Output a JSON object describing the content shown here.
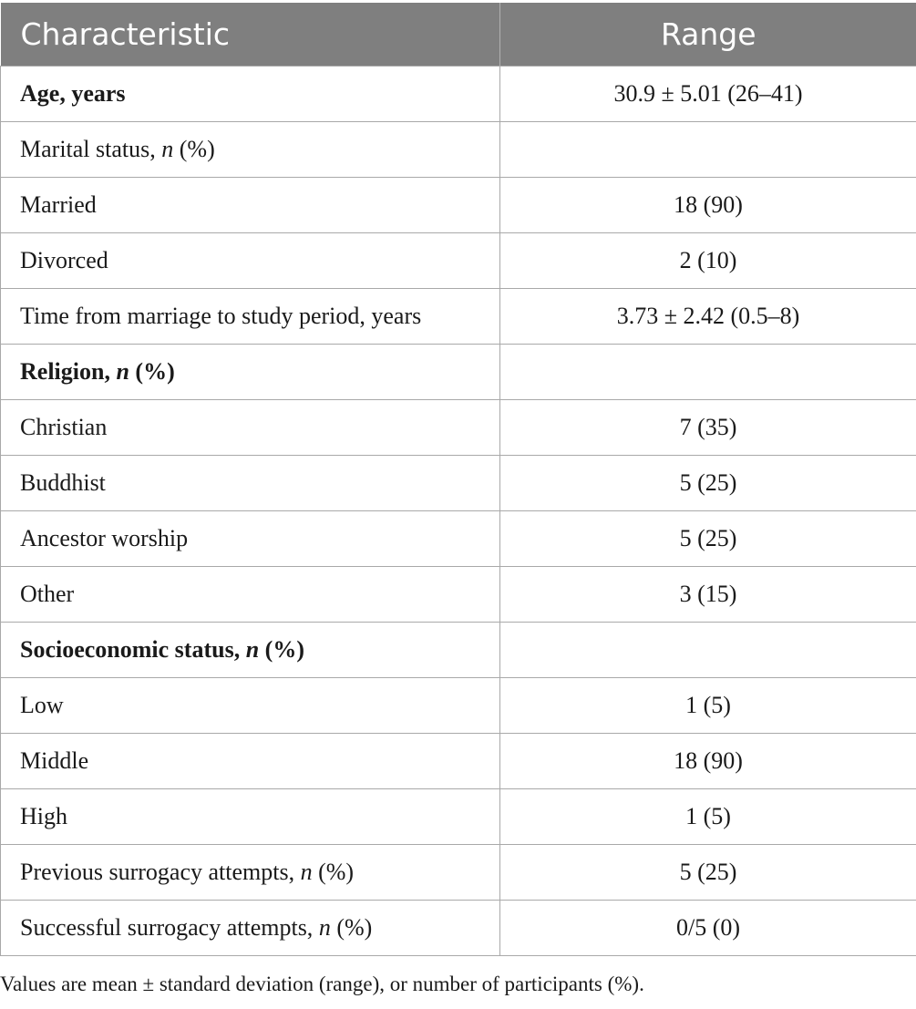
{
  "table": {
    "header": {
      "col1": "Characteristic",
      "col2": "Range"
    },
    "rows": [
      {
        "label": "Age, years",
        "italic": "",
        "suffix": "",
        "value": "30.9 ± 5.01 (26–41)",
        "bold": true
      },
      {
        "label": "Marital status, ",
        "italic": "n",
        "suffix": " (%)",
        "value": "",
        "bold": false
      },
      {
        "label": "Married",
        "italic": "",
        "suffix": "",
        "value": "18 (90)",
        "bold": false
      },
      {
        "label": "Divorced",
        "italic": "",
        "suffix": "",
        "value": "2 (10)",
        "bold": false
      },
      {
        "label": "Time from marriage to study period, years",
        "italic": "",
        "suffix": "",
        "value": "3.73 ± 2.42 (0.5–8)",
        "bold": false
      },
      {
        "label": "Religion, ",
        "italic": "n",
        "suffix": " (%)",
        "value": "",
        "bold": true
      },
      {
        "label": "Christian",
        "italic": "",
        "suffix": "",
        "value": "7 (35)",
        "bold": false
      },
      {
        "label": "Buddhist",
        "italic": "",
        "suffix": "",
        "value": "5 (25)",
        "bold": false
      },
      {
        "label": "Ancestor worship",
        "italic": "",
        "suffix": "",
        "value": "5 (25)",
        "bold": false
      },
      {
        "label": "Other",
        "italic": "",
        "suffix": "",
        "value": "3 (15)",
        "bold": false
      },
      {
        "label": "Socioeconomic status, ",
        "italic": "n",
        "suffix": " (%)",
        "value": "",
        "bold": true
      },
      {
        "label": "Low",
        "italic": "",
        "suffix": "",
        "value": "1 (5)",
        "bold": false
      },
      {
        "label": "Middle",
        "italic": "",
        "suffix": "",
        "value": "18 (90)",
        "bold": false
      },
      {
        "label": "High",
        "italic": "",
        "suffix": "",
        "value": "1 (5)",
        "bold": false
      },
      {
        "label": "Previous surrogacy attempts, ",
        "italic": "n",
        "suffix": " (%)",
        "value": "5 (25)",
        "bold": false
      },
      {
        "label": "Successful surrogacy attempts, ",
        "italic": "n",
        "suffix": " (%)",
        "value": "0/5 (0)",
        "bold": false
      }
    ]
  },
  "footnote": "Values are mean ± standard deviation (range), or number of participants (%)."
}
